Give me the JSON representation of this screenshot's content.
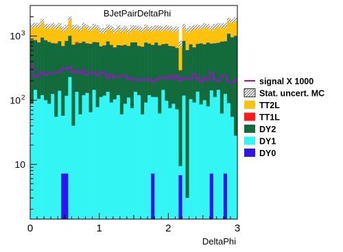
{
  "chart_data": {
    "type": "histogram-stacked",
    "title": "BJetPairDeltaPhi",
    "xlabel": "DeltaPhi",
    "ylabel": "",
    "xlim": [
      0,
      3
    ],
    "ylim": [
      1.4,
      3000
    ],
    "ylog": true,
    "nbins": 60,
    "x_ticks": [
      0,
      1,
      2,
      3
    ],
    "x_tick_labels": [
      "0",
      "1",
      "2",
      "3"
    ],
    "y_ticks": [
      {
        "value": 10,
        "label": "10"
      },
      {
        "value": 100,
        "label": "10",
        "exp": "2"
      },
      {
        "value": 1000,
        "label": "10",
        "exp": "3"
      }
    ],
    "stack_order": [
      "DY0",
      "DY1",
      "DY2",
      "TT1L",
      "TT2L"
    ],
    "series": [
      {
        "name": "DY0",
        "color": "#2f14f0",
        "values": [
          0,
          0,
          0,
          0,
          0,
          0,
          0,
          0,
          0,
          7.2,
          7.2,
          0,
          0,
          0,
          0,
          0,
          0,
          0,
          0,
          0,
          0,
          0,
          0,
          0,
          0,
          0,
          0,
          0,
          0,
          0,
          0,
          0,
          0,
          0,
          0,
          7.2,
          0,
          0,
          0,
          0,
          0,
          0,
          0,
          6.8,
          0,
          0,
          0,
          0,
          0,
          0,
          0,
          0,
          7.2,
          0,
          0,
          0,
          7.2,
          0,
          0,
          0
        ]
      },
      {
        "name": "DY1",
        "color": "#33f6f4",
        "values": [
          90,
          145,
          105,
          120,
          100,
          88,
          125,
          55,
          140,
          50,
          110,
          230,
          40,
          135,
          60,
          120,
          130,
          65,
          145,
          78,
          112,
          118,
          135,
          92,
          103,
          120,
          60,
          88,
          110,
          75,
          135,
          120,
          60,
          92,
          120,
          105,
          112,
          62,
          145,
          98,
          75,
          88,
          72,
          2.6,
          118,
          3,
          104,
          92,
          136,
          86,
          100,
          80,
          135,
          112,
          145,
          62,
          118,
          90,
          55,
          28
        ]
      },
      {
        "name": "DY2",
        "color": "#136b3c",
        "values": [
          780,
          720,
          690,
          830,
          760,
          720,
          650,
          710,
          690,
          640,
          720,
          780,
          690,
          630,
          720,
          700,
          640,
          690,
          660,
          720,
          580,
          600,
          690,
          630,
          560,
          600,
          650,
          640,
          590,
          720,
          660,
          580,
          620,
          700,
          640,
          610,
          680,
          650,
          600,
          660,
          620,
          600,
          580,
          280,
          720,
          600,
          640,
          570,
          620,
          680,
          640,
          710,
          620,
          660,
          640,
          760,
          700,
          1000,
          900,
          980
        ]
      },
      {
        "name": "TT1L",
        "color": "#ff1a1a",
        "values": [
          6,
          8,
          7,
          5,
          9,
          6,
          7,
          8,
          6,
          9,
          7,
          6,
          8,
          40,
          7,
          5,
          9,
          7,
          6,
          8,
          7,
          6,
          5,
          8,
          7,
          6,
          9,
          7,
          8,
          6,
          7,
          8,
          9,
          6,
          7,
          8,
          6,
          7,
          9,
          6,
          8,
          7,
          6,
          7,
          8,
          6,
          9,
          7,
          6,
          8,
          7,
          6,
          9,
          8,
          7,
          6,
          8,
          7,
          9,
          8
        ]
      },
      {
        "name": "TT2L",
        "color": "#fdc20c",
        "values": [
          560,
          620,
          680,
          760,
          560,
          600,
          700,
          620,
          640,
          580,
          540,
          860,
          640,
          580,
          520,
          660,
          600,
          540,
          620,
          560,
          520,
          500,
          560,
          600,
          540,
          620,
          520,
          600,
          500,
          560,
          540,
          620,
          560,
          600,
          520,
          580,
          560,
          620,
          540,
          600,
          620,
          560,
          640,
          460,
          580,
          620,
          560,
          700,
          640,
          600,
          720,
          620,
          560,
          640,
          680,
          620,
          640,
          700,
          760,
          800
        ]
      }
    ],
    "signal": {
      "name": "signal X 1000",
      "color": "#9b13c8",
      "values": [
        345,
        230,
        245,
        275,
        250,
        260,
        265,
        268,
        275,
        310,
        312,
        325,
        270,
        285,
        265,
        295,
        250,
        262,
        270,
        242,
        275,
        265,
        220,
        250,
        228,
        232,
        240,
        240,
        212,
        220,
        205,
        205,
        212,
        205,
        215,
        195,
        210,
        225,
        222,
        218,
        240,
        215,
        240,
        205,
        228,
        212,
        213,
        255,
        218,
        195,
        225,
        205,
        270,
        208,
        200,
        240,
        240,
        195,
        192,
        205
      ]
    },
    "uncertainty": {
      "name": "Stat. uncert. MC"
    },
    "legend_position": "right-outside",
    "legend": [
      {
        "label": "signal X 1000",
        "kind": "line",
        "color": "#9b13c8"
      },
      {
        "label": "Stat. uncert. MC",
        "kind": "hatch",
        "color": "#000000"
      },
      {
        "label": "TT2L",
        "kind": "box",
        "color": "#fdc20c"
      },
      {
        "label": "TT1L",
        "kind": "box",
        "color": "#ff1a1a"
      },
      {
        "label": "DY2",
        "kind": "box",
        "color": "#136b3c"
      },
      {
        "label": "DY1",
        "kind": "box",
        "color": "#33f6f4"
      },
      {
        "label": "DY0",
        "kind": "box",
        "color": "#2f14f0"
      }
    ]
  }
}
